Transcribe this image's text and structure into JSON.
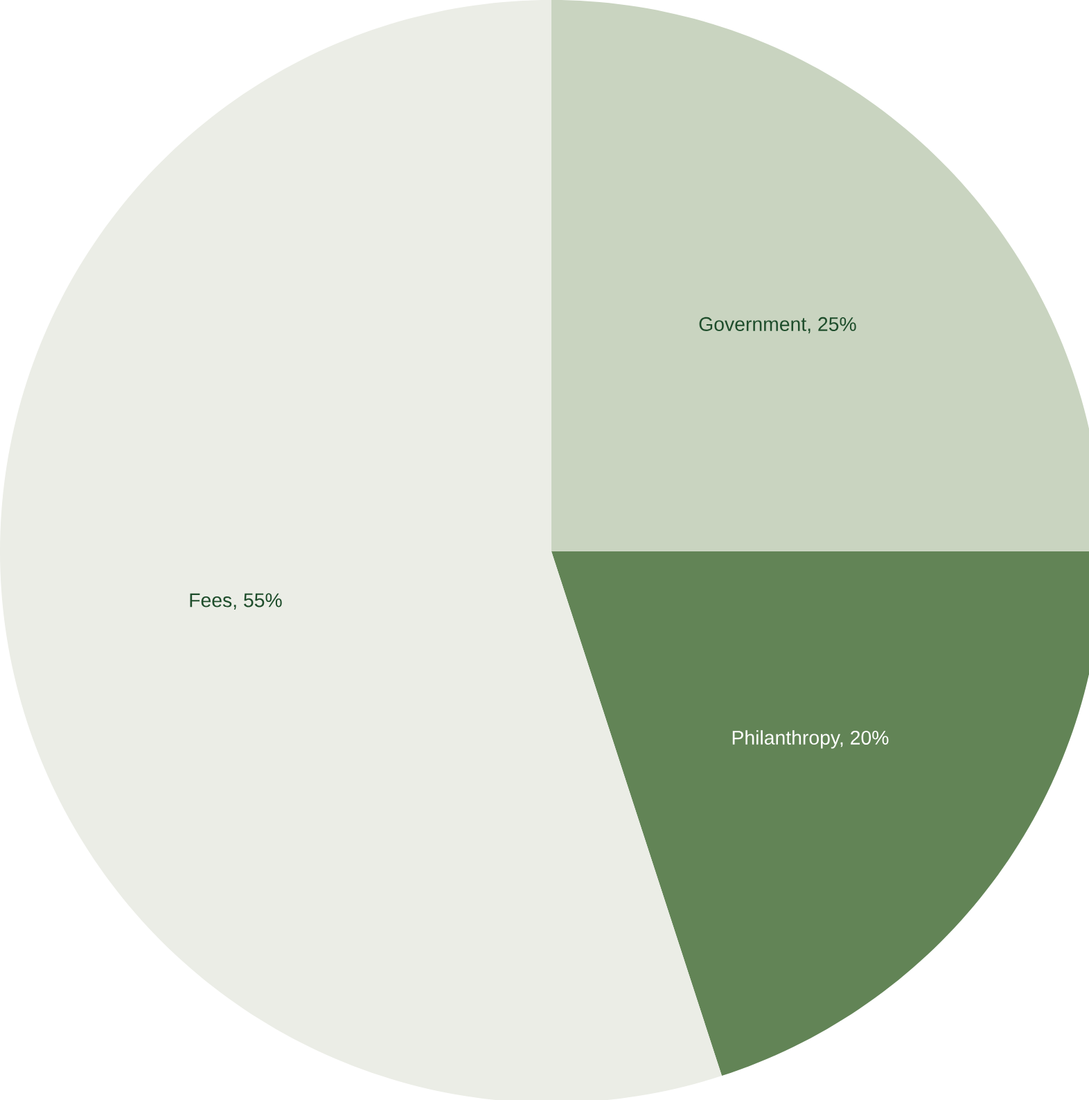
{
  "chart_data": {
    "type": "pie",
    "categories": [
      "Government, 25%",
      "Philanthropy, 20%",
      "Fees, 55%"
    ],
    "values": [
      25,
      20,
      55
    ],
    "colors": [
      "#c9d4c0",
      "#628456",
      "#ebede6"
    ]
  }
}
